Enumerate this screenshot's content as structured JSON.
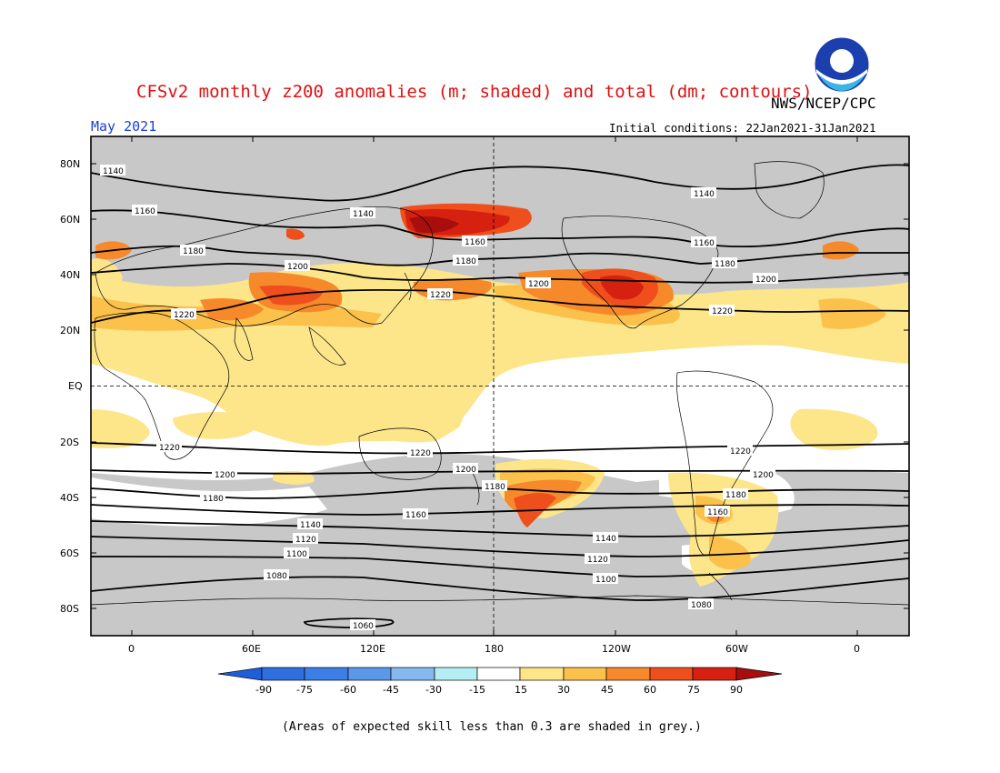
{
  "header": {
    "title": "CFSv2 monthly z200 anomalies (m; shaded) and total (dm; contours)",
    "month": "May 2021",
    "agency": "NWS/NCEP/CPC",
    "initial_conditions": "Initial conditions: 22Jan2021-31Jan2021",
    "logo_text": "NOAA"
  },
  "map": {
    "lat_labels": [
      "80N",
      "60N",
      "40N",
      "20N",
      "EQ",
      "20S",
      "40S",
      "60S",
      "80S"
    ],
    "lon_labels": [
      "0",
      "60E",
      "120E",
      "180",
      "120W",
      "60W",
      "0"
    ],
    "contour_levels": [
      "1140",
      "1160",
      "1180",
      "1200",
      "1220",
      "1220",
      "1200",
      "1180",
      "1160",
      "1140",
      "1120",
      "1100",
      "1080",
      "1060"
    ],
    "contour_labels": {
      "c1140n": "1140",
      "c1140n2": "1140",
      "c1140n3": "1140",
      "c1160n": "1160",
      "c1160n2": "1160",
      "c1160n3": "1160",
      "c1180n": "1180",
      "c1180n2": "1180",
      "c1180n3": "1180",
      "c1200n": "1200",
      "c1200n2": "1200",
      "c1200n3": "1200",
      "c1220n": "1220",
      "c1220n2": "1220",
      "c1220n3": "1220",
      "c1220s": "1220",
      "c1220s2": "1220",
      "c1220s3": "1220",
      "c1200s": "1200",
      "c1200s2": "1200",
      "c1200s3": "1200",
      "c1180s": "1180",
      "c1180s2": "1180",
      "c1180s3": "1180",
      "c1160s": "1160",
      "c1160s2": "1160",
      "c1140s": "1140",
      "c1140s2": "1140",
      "c1120s": "1120",
      "c1120s2": "1120",
      "c1100s": "1100",
      "c1100s2": "1100",
      "c1080s": "1080",
      "c1080s2": "1080",
      "c1060s": "1060"
    },
    "colors": {
      "grey_low_skill": "#c8c8c8",
      "white": "#ffffff",
      "a15": "#fde58a",
      "a30": "#fbc14b",
      "a45": "#f68a2b",
      "a60": "#ee4f1c",
      "a75": "#d62010",
      "a90": "#a80e0e"
    }
  },
  "colorbar": {
    "ticks": [
      "-90",
      "-75",
      "-60",
      "-45",
      "-30",
      "-15",
      "15",
      "30",
      "45",
      "60",
      "75",
      "90"
    ],
    "colors": [
      "#1f5ed8",
      "#3a7ee6",
      "#5a98ea",
      "#85b8f0",
      "#b5defa",
      "#ffffff",
      "#fde58a",
      "#fbc14b",
      "#f68a2b",
      "#ee4f1c",
      "#d62010",
      "#a80e0e"
    ]
  },
  "footnote": "(Areas of expected skill less than 0.3 are shaded in grey.)"
}
